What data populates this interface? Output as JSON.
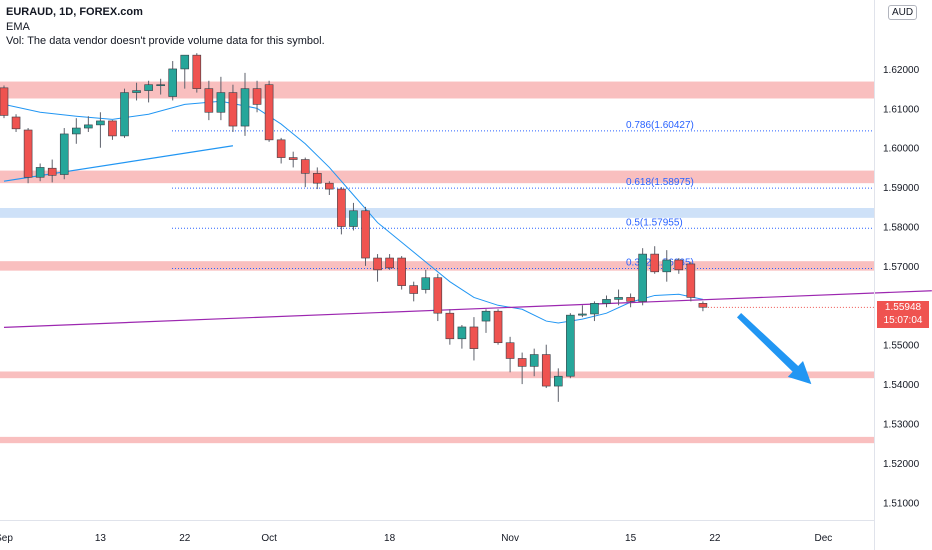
{
  "header": {
    "title": "EURAUD, 1D, FOREX.com",
    "ema_label": "EMA",
    "vol_label": "Vol: The data vendor doesn't provide volume data for this symbol."
  },
  "currency_button": "AUD",
  "price_tag": {
    "price": "1.55948",
    "countdown": "15:07:04"
  },
  "colors": {
    "bull": "#26a69a",
    "bear": "#ef5350",
    "ema": "#2196f3",
    "trend": "#9c27b0",
    "zone_red": "#f8b4b4",
    "zone_blue": "#c6dcf7",
    "fib": "#2962ff"
  },
  "chart_data": {
    "type": "candlestick",
    "ylim": [
      1.5055,
      1.6375
    ],
    "y_ticks": [
      "1.62000",
      "1.61000",
      "1.60000",
      "1.59000",
      "1.58000",
      "1.57000",
      "1.56000",
      "1.55000",
      "1.54000",
      "1.53000",
      "1.52000",
      "1.51000"
    ],
    "y_tick_values": [
      1.62,
      1.61,
      1.6,
      1.59,
      1.58,
      1.57,
      1.56,
      1.55,
      1.54,
      1.53,
      1.52,
      1.51
    ],
    "x_ticks": [
      {
        "label": "Sep",
        "bar": 0
      },
      {
        "label": "13",
        "bar": 8
      },
      {
        "label": "22",
        "bar": 15
      },
      {
        "label": "Oct",
        "bar": 22
      },
      {
        "label": "18",
        "bar": 32
      },
      {
        "label": "Nov",
        "bar": 42
      },
      {
        "label": "15",
        "bar": 52
      },
      {
        "label": "22",
        "bar": 59
      },
      {
        "label": "Dec",
        "bar": 68
      }
    ],
    "candles": [
      [
        1.6152,
        1.6158,
        1.6075,
        1.6082
      ],
      [
        1.6078,
        1.6085,
        1.604,
        1.6048
      ],
      [
        1.6045,
        1.605,
        1.591,
        1.5925
      ],
      [
        1.5925,
        1.596,
        1.5915,
        1.595
      ],
      [
        1.5948,
        1.597,
        1.5912,
        1.593
      ],
      [
        1.5932,
        1.605,
        1.592,
        1.6035
      ],
      [
        1.6035,
        1.6075,
        1.601,
        1.605
      ],
      [
        1.605,
        1.608,
        1.604,
        1.6058
      ],
      [
        1.6058,
        1.609,
        1.6,
        1.6068
      ],
      [
        1.6068,
        1.607,
        1.602,
        1.603
      ],
      [
        1.603,
        1.615,
        1.6025,
        1.614
      ],
      [
        1.614,
        1.6165,
        1.612,
        1.6145
      ],
      [
        1.6145,
        1.617,
        1.6115,
        1.616
      ],
      [
        1.616,
        1.6175,
        1.6135,
        1.616
      ],
      [
        1.613,
        1.622,
        1.612,
        1.62
      ],
      [
        1.62,
        1.6235,
        1.615,
        1.6235
      ],
      [
        1.6235,
        1.624,
        1.614,
        1.615
      ],
      [
        1.615,
        1.617,
        1.607,
        1.609
      ],
      [
        1.609,
        1.618,
        1.607,
        1.614
      ],
      [
        1.614,
        1.616,
        1.604,
        1.6055
      ],
      [
        1.6055,
        1.619,
        1.603,
        1.615
      ],
      [
        1.615,
        1.617,
        1.609,
        1.611
      ],
      [
        1.616,
        1.617,
        1.6015,
        1.602
      ],
      [
        1.602,
        1.6025,
        1.596,
        1.5975
      ],
      [
        1.5975,
        1.599,
        1.595,
        1.597
      ],
      [
        1.597,
        1.5975,
        1.59,
        1.5935
      ],
      [
        1.5935,
        1.595,
        1.5895,
        1.591
      ],
      [
        1.591,
        1.5915,
        1.588,
        1.5895
      ],
      [
        1.5895,
        1.59,
        1.578,
        1.58
      ],
      [
        1.58,
        1.586,
        1.579,
        1.584
      ],
      [
        1.584,
        1.585,
        1.57,
        1.572
      ],
      [
        1.572,
        1.573,
        1.566,
        1.569
      ],
      [
        1.572,
        1.573,
        1.569,
        1.5695
      ],
      [
        1.572,
        1.5725,
        1.564,
        1.565
      ],
      [
        1.565,
        1.566,
        1.561,
        1.563
      ],
      [
        1.564,
        1.569,
        1.563,
        1.567
      ],
      [
        1.567,
        1.568,
        1.556,
        1.558
      ],
      [
        1.558,
        1.559,
        1.55,
        1.5515
      ],
      [
        1.5515,
        1.555,
        1.549,
        1.5545
      ],
      [
        1.5545,
        1.557,
        1.546,
        1.549
      ],
      [
        1.556,
        1.559,
        1.553,
        1.5585
      ],
      [
        1.5585,
        1.559,
        1.55,
        1.5505
      ],
      [
        1.5505,
        1.552,
        1.543,
        1.5465
      ],
      [
        1.5465,
        1.548,
        1.54,
        1.5445
      ],
      [
        1.5445,
        1.549,
        1.542,
        1.5475
      ],
      [
        1.5475,
        1.55,
        1.539,
        1.5395
      ],
      [
        1.5395,
        1.544,
        1.5355,
        1.542
      ],
      [
        1.542,
        1.558,
        1.5415,
        1.5575
      ],
      [
        1.5575,
        1.56,
        1.557,
        1.5578
      ],
      [
        1.5578,
        1.561,
        1.556,
        1.5605
      ],
      [
        1.5605,
        1.5625,
        1.5595,
        1.5615
      ],
      [
        1.5615,
        1.564,
        1.56,
        1.562
      ],
      [
        1.562,
        1.563,
        1.5595,
        1.561
      ],
      [
        1.561,
        1.5745,
        1.56,
        1.573
      ],
      [
        1.573,
        1.575,
        1.568,
        1.5685
      ],
      [
        1.5685,
        1.574,
        1.566,
        1.5715
      ],
      [
        1.5715,
        1.572,
        1.568,
        1.569
      ],
      [
        1.5705,
        1.571,
        1.561,
        1.562
      ],
      [
        1.5605,
        1.561,
        1.5585,
        1.5595
      ]
    ],
    "ema": [
      [
        0,
        1.611
      ],
      [
        3,
        1.609
      ],
      [
        6,
        1.608
      ],
      [
        9,
        1.6072
      ],
      [
        12,
        1.6085
      ],
      [
        15,
        1.611
      ],
      [
        18,
        1.6118
      ],
      [
        21,
        1.61
      ],
      [
        23,
        1.606
      ],
      [
        25,
        1.601
      ],
      [
        27,
        1.595
      ],
      [
        29,
        1.588
      ],
      [
        31,
        1.581
      ],
      [
        33,
        1.576
      ],
      [
        35,
        1.571
      ],
      [
        37,
        1.566
      ],
      [
        39,
        1.562
      ],
      [
        41,
        1.56
      ],
      [
        43,
        1.559
      ],
      [
        45,
        1.556
      ],
      [
        46,
        1.5555
      ],
      [
        48,
        1.5565
      ],
      [
        50,
        1.558
      ],
      [
        52,
        1.5608
      ],
      [
        54,
        1.5625
      ],
      [
        56,
        1.5628
      ],
      [
        58,
        1.5615
      ]
    ],
    "trend_lines": [
      {
        "name": "rising-trendline",
        "color": "#2196f3",
        "points": [
          [
            0,
            1.5915
          ],
          [
            19,
            1.6005
          ]
        ]
      },
      {
        "name": "support-trendline",
        "color": "#9c27b0",
        "points": [
          [
            0,
            1.5544
          ],
          [
            77,
            1.5637
          ]
        ]
      }
    ],
    "zones": [
      {
        "color": "red",
        "y1": 1.6125,
        "y2": 1.6168
      },
      {
        "color": "red",
        "y1": 1.591,
        "y2": 1.5942
      },
      {
        "color": "blue",
        "y1": 1.5822,
        "y2": 1.5847
      },
      {
        "color": "red",
        "y1": 1.5688,
        "y2": 1.5712
      },
      {
        "color": "red",
        "y1": 1.5415,
        "y2": 1.5432
      },
      {
        "color": "red",
        "y1": 1.525,
        "y2": 1.5266
      }
    ],
    "fib_levels": [
      {
        "label": "0.786(1.60427)",
        "value": 1.60427
      },
      {
        "label": "0.618(1.58975)",
        "value": 1.58975
      },
      {
        "label": "0.5(1.57955)",
        "value": 1.57955
      },
      {
        "label": "0.382(1.56935)",
        "value": 1.56935
      }
    ],
    "last_price": 1.55948,
    "arrow": {
      "from": [
        61,
        1.5575
      ],
      "to": [
        67,
        1.54
      ]
    }
  }
}
